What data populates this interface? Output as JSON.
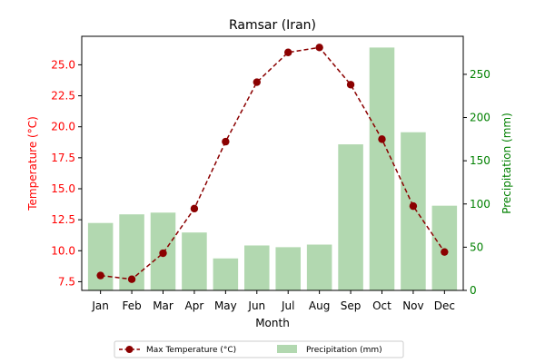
{
  "chart_data": {
    "type": "bar+line",
    "title": "Ramsar (Iran)",
    "xlabel": "Month",
    "categories": [
      "Jan",
      "Feb",
      "Mar",
      "Apr",
      "May",
      "Jun",
      "Jul",
      "Aug",
      "Sep",
      "Oct",
      "Nov",
      "Dec"
    ],
    "left_axis": {
      "label": "Temperature (°C)",
      "color": "#ff0000",
      "ylim": [
        6.8,
        27.3
      ],
      "ticks": [
        "7.5",
        "10.0",
        "12.5",
        "15.0",
        "17.5",
        "20.0",
        "22.5",
        "25.0"
      ]
    },
    "right_axis": {
      "label": "Precipitation (mm)",
      "color": "#008000",
      "ylim": [
        0,
        294
      ],
      "ticks": [
        "0",
        "50",
        "100",
        "150",
        "200",
        "250"
      ]
    },
    "series": [
      {
        "name": "Max Temperature (°C)",
        "type": "line",
        "axis": "left",
        "color": "#8b0000",
        "line_style": "dashed",
        "marker": "circle",
        "values": [
          8.0,
          7.7,
          9.8,
          13.4,
          18.8,
          23.6,
          26.0,
          26.4,
          23.4,
          19.0,
          13.6,
          9.9
        ]
      },
      {
        "name": "Precipitation (mm)",
        "type": "bar",
        "axis": "right",
        "color": "#b2d8b0",
        "values": [
          78,
          88,
          90,
          67,
          37,
          52,
          50,
          53,
          169,
          281,
          183,
          98
        ]
      }
    ],
    "legend": {
      "placement": "bottom-center",
      "items": [
        "Max Temperature (°C)",
        "Precipitation (mm)"
      ]
    },
    "grid": false
  }
}
